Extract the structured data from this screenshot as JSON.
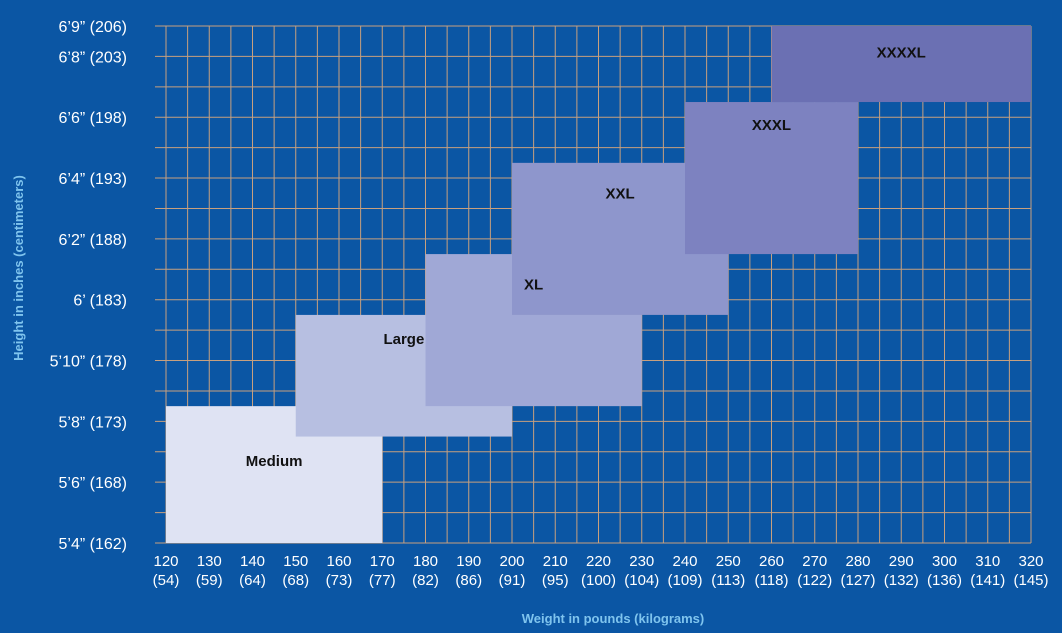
{
  "chart_data": {
    "type": "heatmap",
    "title": "",
    "xlabel": "Weight in pounds (kilograms)",
    "ylabel": "Height in inches (centimeters)",
    "x_ticks": [
      {
        "lb": "120",
        "kg": "(54)"
      },
      {
        "lb": "130",
        "kg": "(59)"
      },
      {
        "lb": "140",
        "kg": "(64)"
      },
      {
        "lb": "150",
        "kg": "(68)"
      },
      {
        "lb": "160",
        "kg": "(73)"
      },
      {
        "lb": "170",
        "kg": "(77)"
      },
      {
        "lb": "180",
        "kg": "(82)"
      },
      {
        "lb": "190",
        "kg": "(86)"
      },
      {
        "lb": "200",
        "kg": "(91)"
      },
      {
        "lb": "210",
        "kg": "(95)"
      },
      {
        "lb": "220",
        "kg": "(100)"
      },
      {
        "lb": "230",
        "kg": "(104)"
      },
      {
        "lb": "240",
        "kg": "(109)"
      },
      {
        "lb": "250",
        "kg": "(113)"
      },
      {
        "lb": "260",
        "kg": "(118)"
      },
      {
        "lb": "270",
        "kg": "(122)"
      },
      {
        "lb": "280",
        "kg": "(127)"
      },
      {
        "lb": "290",
        "kg": "(132)"
      },
      {
        "lb": "300",
        "kg": "(136)"
      },
      {
        "lb": "310",
        "kg": "(141)"
      },
      {
        "lb": "320",
        "kg": "(145)"
      }
    ],
    "y_ticks": [
      "5’4” (162)",
      "5’6” (168)",
      "5’8” (173)",
      "5’10” (178)",
      "6’  (183)",
      "6’2” (188)",
      "6’4” (193)",
      "6’6” (198)",
      "6’8” (203)",
      "6’9” (206)"
    ],
    "regions": [
      {
        "name": "Medium",
        "weight_lb": [
          120,
          170
        ],
        "height_in": [
          64,
          68.5
        ],
        "color": "#dfe3f3"
      },
      {
        "name": "Large",
        "weight_lb": [
          150,
          200
        ],
        "height_in": [
          67.5,
          71.5
        ],
        "color": "#b7bfe1"
      },
      {
        "name": "XL",
        "weight_lb": [
          180,
          230
        ],
        "height_in": [
          68.5,
          73.5
        ],
        "color": "#a0a8d6"
      },
      {
        "name": "XXL",
        "weight_lb": [
          200,
          250
        ],
        "height_in": [
          71.5,
          76.5
        ],
        "color": "#8e96cc"
      },
      {
        "name": "XXXL",
        "weight_lb": [
          240,
          280
        ],
        "height_in": [
          73.5,
          78.5
        ],
        "color": "#7d82c0"
      },
      {
        "name": "XXXXL",
        "weight_lb": [
          260,
          320
        ],
        "height_in": [
          78.5,
          81
        ],
        "color": "#6b70b3"
      }
    ],
    "colors": {
      "background": "#0b56a4",
      "grid": "#c8a07e",
      "axis_title": "#7fc4ee",
      "tick_text": "#ffffff"
    },
    "grid": true
  }
}
